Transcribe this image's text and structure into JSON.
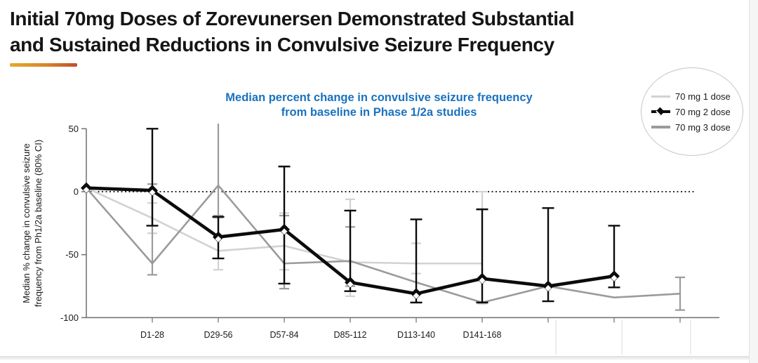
{
  "page": {
    "title_line1": "Initial 70mg Doses of Zorevunersen Demonstrated Substantial",
    "title_line2": "and Sustained Reductions in Convulsive Seizure Frequency"
  },
  "legend": {
    "items": [
      {
        "label": "70 mg 1 dose",
        "color": "#d2d2d2"
      },
      {
        "label": "70 mg 2 dose",
        "color": "#0b0b0b"
      },
      {
        "label": "70 mg 3 dose",
        "color": "#9b9b9b"
      }
    ]
  },
  "chart_data": {
    "type": "line",
    "title_line1": "Median percent change in convulsive seizure frequency",
    "title_line2": "from baseline in Phase 1/2a studies",
    "title_color": "#1a72be",
    "ylabel_line1": "Median % change in convulsive seizure",
    "ylabel_line2": "frequency from Ph1/2a baseline (80% CI)",
    "y_ticks": [
      50,
      0,
      -50,
      -100
    ],
    "ylim": [
      -100,
      50
    ],
    "zero_reference_line": true,
    "x_tick_labels": [
      "D1-28",
      "D29-56",
      "D57-84",
      "D85-112",
      "D113-140",
      "D141-168"
    ],
    "x_slots": 10,
    "note": "slot 0 = baseline on y-axis; slots 7-9 are unlabeled follow-up periods; error bars = 80% CI",
    "series": [
      {
        "id": "dose1",
        "name": "70 mg 1 dose",
        "color": "#d2d2d2",
        "line_width": 2.6,
        "err_width": 2.2,
        "cap_half": 7,
        "marker": "none",
        "points": [
          {
            "i": 0,
            "v": 3
          },
          {
            "i": 1,
            "v": -21,
            "lo": -33,
            "hi": -9
          },
          {
            "i": 2,
            "v": -47,
            "lo": -62,
            "hi": -21
          },
          {
            "i": 3,
            "v": -43,
            "lo": -62,
            "hi": -17
          },
          {
            "i": 4,
            "v": -56,
            "lo": -83,
            "hi": -6
          },
          {
            "i": 5,
            "v": -57,
            "lo": -65,
            "hi": -41
          },
          {
            "i": 6,
            "v": -57,
            "lo": -89,
            "hi": 0
          }
        ]
      },
      {
        "id": "dose3",
        "name": "70 mg 3 dose",
        "color": "#9b9b9b",
        "line_width": 2.6,
        "err_width": 2.2,
        "cap_half": 7,
        "marker": "none",
        "points": [
          {
            "i": 0,
            "v": 3
          },
          {
            "i": 1,
            "v": -57,
            "lo": -66,
            "hi": 6
          },
          {
            "i": 2,
            "v": 5,
            "lo": -19,
            "hi": 54,
            "nocap_hi": true
          },
          {
            "i": 3,
            "v": -57,
            "lo": -77,
            "hi": -19
          },
          {
            "i": 4,
            "v": -55,
            "lo": -75,
            "hi": -28
          },
          {
            "i": 5,
            "v": -72
          },
          {
            "i": 6,
            "v": -88
          },
          {
            "i": 7,
            "v": -75
          },
          {
            "i": 8,
            "v": -84
          },
          {
            "i": 9,
            "v": -81,
            "lo": -94,
            "hi": -68
          }
        ]
      },
      {
        "id": "dose2",
        "name": "70 mg 2 dose",
        "color": "#0b0b0b",
        "line_width": 4.6,
        "err_width": 2.4,
        "cap_half": 8.5,
        "marker": "diamond",
        "points": [
          {
            "i": 0,
            "v": 3
          },
          {
            "i": 1,
            "v": 1,
            "lo": -27,
            "hi": 50
          },
          {
            "i": 2,
            "v": -36,
            "lo": -53,
            "hi": -20
          },
          {
            "i": 3,
            "v": -30,
            "lo": -73,
            "hi": 20
          },
          {
            "i": 4,
            "v": -72,
            "lo": -79,
            "hi": -15
          },
          {
            "i": 5,
            "v": -81,
            "lo": -88,
            "hi": -22
          },
          {
            "i": 6,
            "v": -69,
            "lo": -88,
            "hi": -14
          },
          {
            "i": 7,
            "v": -75,
            "lo": -87,
            "hi": -13
          },
          {
            "i": 8,
            "v": -67,
            "lo": -76,
            "hi": -27
          }
        ]
      }
    ]
  }
}
